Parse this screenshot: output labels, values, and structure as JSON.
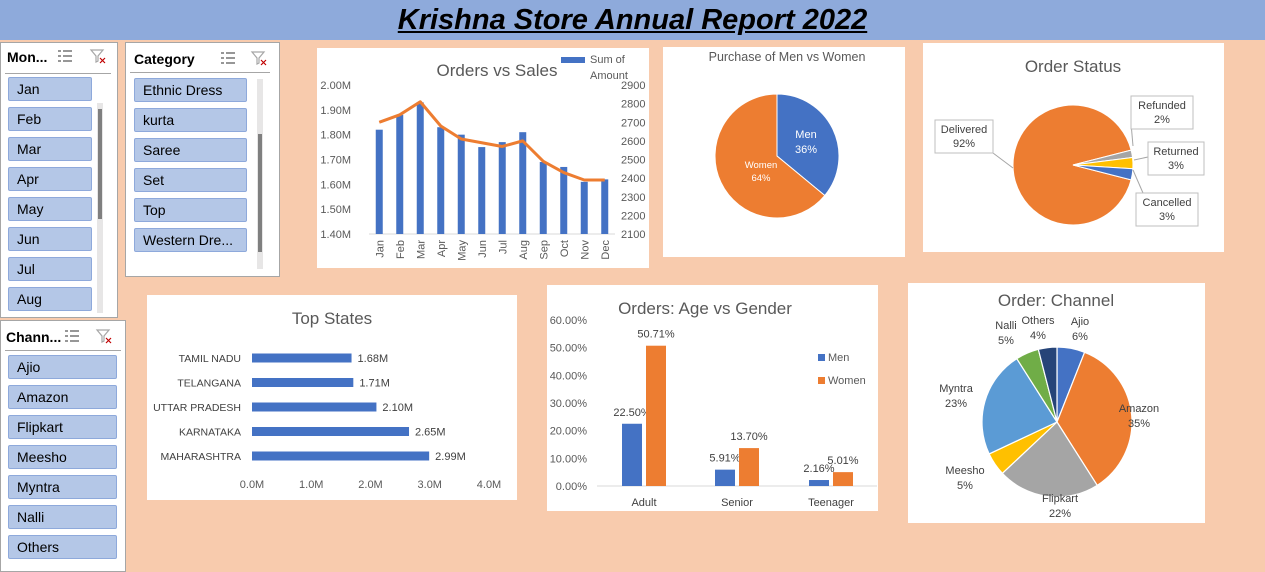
{
  "banner": {
    "title": "Krishna Store Annual Report 2022"
  },
  "colors": {
    "blue": "#4472c4",
    "orange": "#ed7d31",
    "gray": "#a5a5a5",
    "yellow": "#ffc000",
    "lightblue": "#5b9bd5",
    "green": "#70ad47",
    "navy": "#264478",
    "banner": "#8eaadb",
    "background": "#f8cbad",
    "slicer_item": "#b4c7e7"
  },
  "slicers": {
    "month": {
      "title": "Mon...",
      "items": [
        "Jan",
        "Feb",
        "Mar",
        "Apr",
        "May",
        "Jun",
        "Jul",
        "Aug"
      ]
    },
    "category": {
      "title": "Category",
      "items": [
        "Ethnic Dress",
        "kurta",
        "Saree",
        "Set",
        "Top",
        "Western Dre..."
      ]
    },
    "channel": {
      "title": "Chann...",
      "items": [
        "Ajio",
        "Amazon",
        "Flipkart",
        "Meesho",
        "Myntra",
        "Nalli",
        "Others"
      ]
    }
  },
  "chart_data": [
    {
      "id": "orders_vs_sales",
      "type": "bar",
      "title": "Orders vs Sales",
      "categories": [
        "Jan",
        "Feb",
        "Mar",
        "Apr",
        "May",
        "Jun",
        "Jul",
        "Aug",
        "Sep",
        "Oct",
        "Nov",
        "Dec"
      ],
      "series": [
        {
          "name": "Sum of Amount",
          "values": [
            1.82,
            1.88,
            1.93,
            1.83,
            1.8,
            1.75,
            1.77,
            1.81,
            1.69,
            1.67,
            1.61,
            1.62
          ]
        },
        {
          "type": "line",
          "axis": "right",
          "values": [
            2700,
            2740,
            2810,
            2680,
            2610,
            2590,
            2570,
            2600,
            2490,
            2430,
            2390,
            2390
          ]
        }
      ],
      "left_axis": {
        "ticks": [
          "1.40M",
          "1.50M",
          "1.60M",
          "1.70M",
          "1.80M",
          "1.90M",
          "2.00M"
        ],
        "ylim": [
          1.4,
          2.0
        ]
      },
      "right_axis": {
        "ticks": [
          "2100",
          "2200",
          "2300",
          "2400",
          "2500",
          "2600",
          "2700",
          "2800",
          "2900"
        ],
        "ylim": [
          2100,
          2900
        ]
      },
      "legend": "top-right",
      "grid": false
    },
    {
      "id": "men_vs_women",
      "type": "pie",
      "title": "Purchase of Men vs Women",
      "slices": [
        {
          "name": "Men",
          "value": 36,
          "label": "36%"
        },
        {
          "name": "Women",
          "value": 64,
          "label": "64%"
        }
      ]
    },
    {
      "id": "order_status",
      "type": "pie",
      "title": "Order Status",
      "slices": [
        {
          "name": "Delivered",
          "value": 92,
          "label": "92%"
        },
        {
          "name": "Refunded",
          "value": 2,
          "label": "2%"
        },
        {
          "name": "Returned",
          "value": 3,
          "label": "3%"
        },
        {
          "name": "Cancelled",
          "value": 3,
          "label": "3%"
        }
      ]
    },
    {
      "id": "top_states",
      "type": "bar",
      "orientation": "horizontal",
      "title": "Top States",
      "categories": [
        "TAMIL NADU",
        "TELANGANA",
        "UTTAR PRADESH",
        "KARNATAKA",
        "MAHARASHTRA"
      ],
      "values": [
        1.68,
        1.71,
        2.1,
        2.65,
        2.99
      ],
      "value_labels": [
        "1.68M",
        "1.71M",
        "2.10M",
        "2.65M",
        "2.99M"
      ],
      "x_ticks": [
        "0.0M",
        "1.0M",
        "2.0M",
        "3.0M",
        "4.0M"
      ],
      "xlim": [
        0,
        4
      ]
    },
    {
      "id": "age_vs_gender",
      "type": "bar",
      "title": "Orders: Age vs Gender",
      "categories": [
        "Adult",
        "Senior",
        "Teenager"
      ],
      "series": [
        {
          "name": "Men",
          "values": [
            22.5,
            5.91,
            2.16
          ],
          "labels": [
            "22.50%",
            "5.91%",
            "2.16%"
          ]
        },
        {
          "name": "Women",
          "values": [
            50.71,
            13.7,
            5.01
          ],
          "labels": [
            "50.71%",
            "13.70%",
            "5.01%"
          ]
        }
      ],
      "y_ticks": [
        "0.00%",
        "10.00%",
        "20.00%",
        "30.00%",
        "40.00%",
        "50.00%",
        "60.00%"
      ],
      "ylim": [
        0,
        60
      ],
      "legend": "right"
    },
    {
      "id": "order_channel",
      "type": "pie",
      "title": "Order: Channel",
      "slices": [
        {
          "name": "Ajio",
          "value": 6,
          "label": "6%"
        },
        {
          "name": "Amazon",
          "value": 35,
          "label": "35%"
        },
        {
          "name": "Flipkart",
          "value": 22,
          "label": "22%"
        },
        {
          "name": "Meesho",
          "value": 5,
          "label": "5%"
        },
        {
          "name": "Myntra",
          "value": 23,
          "label": "23%"
        },
        {
          "name": "Nalli",
          "value": 5,
          "label": "5%"
        },
        {
          "name": "Others",
          "value": 4,
          "label": "4%"
        }
      ]
    }
  ]
}
